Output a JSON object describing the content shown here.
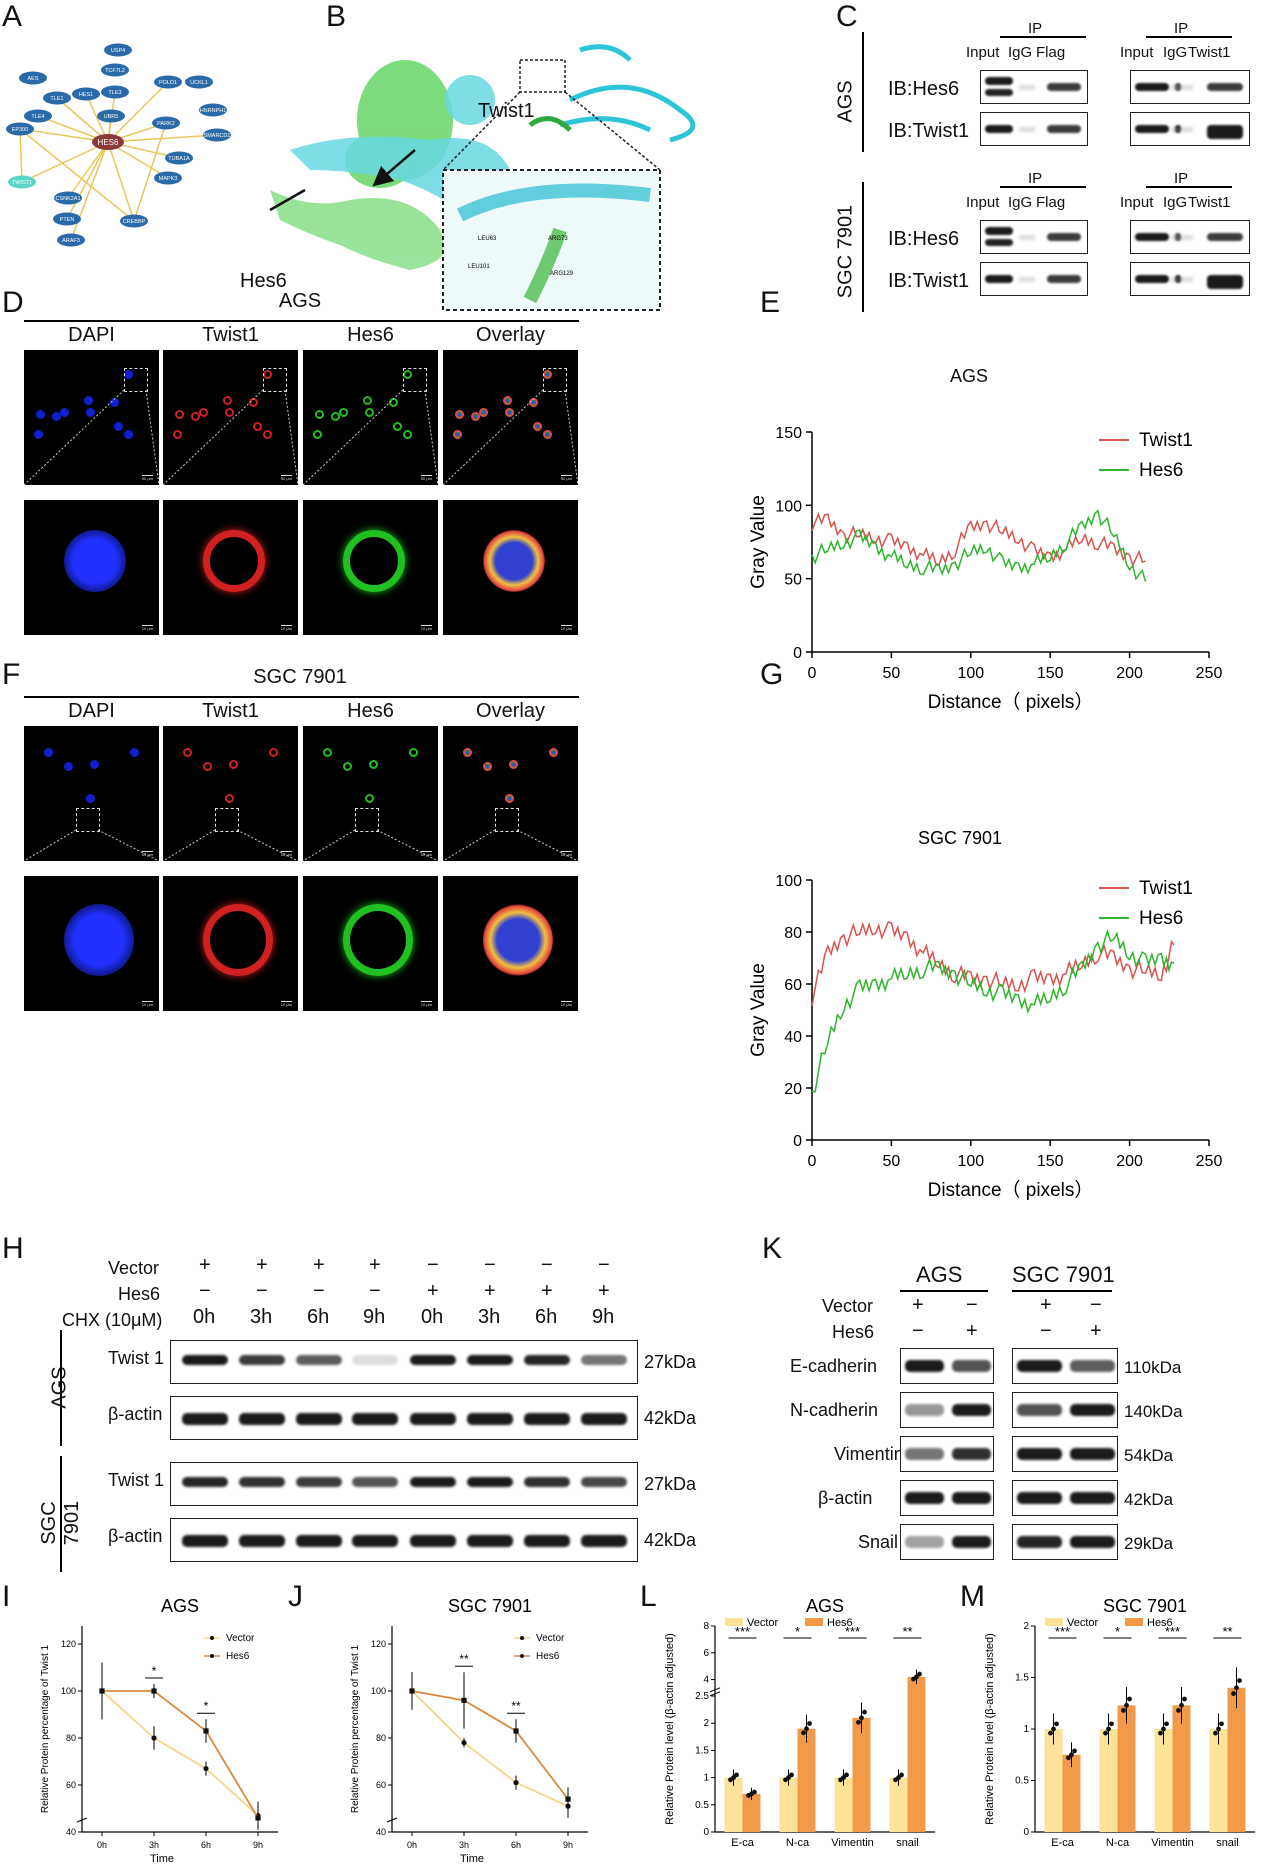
{
  "panels": {
    "A": "A",
    "B": "B",
    "C": "C",
    "D": "D",
    "E": "E",
    "F": "F",
    "G": "G",
    "H": "H",
    "I": "I",
    "J": "J",
    "K": "K",
    "L": "L",
    "M": "M"
  },
  "panelA": {
    "center": "HES6",
    "highlight": "TWIST1",
    "nodes": [
      "USP4",
      "TCF7L2",
      "AES",
      "TLE1",
      "HES1",
      "TLE3",
      "POLD1",
      "UCKL1",
      "HNRNPH1",
      "EP300",
      "TLE4",
      "UBR5",
      "PARK2",
      "SMARCD1",
      "TUBA1A",
      "MAPK3",
      "CSNK2A1",
      "PTEN",
      "CREBBP",
      "ARAF3"
    ]
  },
  "panelB": {
    "twist_label": "Twist1",
    "hes_label": "Hes6",
    "residues": [
      "LEU63",
      "ARG73",
      "LEU101",
      "ARG129"
    ]
  },
  "panelC": {
    "ip": "IP",
    "cols_left": [
      "Input",
      "IgG",
      "Flag"
    ],
    "cols_right": [
      "Input",
      "IgG",
      "Twist1"
    ],
    "cells": [
      "AGS",
      "SGC 7901"
    ],
    "rows": [
      "IB:Hes6",
      "IB:Twist1"
    ]
  },
  "panelD": {
    "title": "AGS",
    "cols": [
      "DAPI",
      "Twist1",
      "Hes6",
      "Overlay"
    ],
    "scale_top": "50 μm",
    "scale_bottom": "10 μm"
  },
  "panelF": {
    "title": "SGC 7901",
    "cols": [
      "DAPI",
      "Twist1",
      "Hes6",
      "Overlay"
    ],
    "scale_top": "50 μm",
    "scale_bottom": "10 μm"
  },
  "panelE": {
    "title": "AGS",
    "ylabel": "Gray Value",
    "xlabel": "Distance（ pixels）",
    "legend": [
      "Twist1",
      "Hes6"
    ]
  },
  "panelG": {
    "title": "SGC 7901",
    "ylabel": "Gray Value",
    "xlabel": "Distance（ pixels）",
    "legend": [
      "Twist1",
      "Hes6"
    ]
  },
  "panelH": {
    "row_labels": [
      "Vector",
      "Hes6",
      "CHX (10μM)"
    ],
    "vector": [
      "+",
      "+",
      "+",
      "+",
      "−",
      "−",
      "−",
      "−"
    ],
    "hes6": [
      "−",
      "−",
      "−",
      "−",
      "+",
      "+",
      "+",
      "+"
    ],
    "times": [
      "0h",
      "3h",
      "6h",
      "9h",
      "0h",
      "3h",
      "6h",
      "9h"
    ],
    "cells": [
      "AGS",
      "SGC 7901"
    ],
    "blots": [
      "Twist 1",
      "β-actin"
    ],
    "kda": [
      "27kDa",
      "42kDa",
      "27kDa",
      "42kDa"
    ]
  },
  "panelK": {
    "cells": [
      "AGS",
      "SGC 7901"
    ],
    "row_labels": [
      "Vector",
      "Hes6"
    ],
    "vector": [
      "+",
      "−",
      "+",
      "−"
    ],
    "hes6": [
      "−",
      "+",
      "−",
      "+"
    ],
    "proteins": [
      "E-cadherin",
      "N-cadherin",
      "Vimentin",
      "β-actin",
      "Snail"
    ],
    "kda": [
      "110kDa",
      "140kDa",
      "54kDa",
      "42kDa",
      "29kDa"
    ]
  },
  "colors": {
    "twist": "#d9534f",
    "hes": "#2db52d",
    "vector_bar": "#fde29a",
    "hes_bar": "#f29a4a",
    "vector_line": "#f7d48a",
    "hes_line": "#d98a40"
  },
  "chart_data": [
    {
      "type": "line",
      "panel": "E",
      "title": "AGS",
      "xlabel": "Distance（ pixels）",
      "ylabel": "Gray Value",
      "xlim": [
        0,
        250
      ],
      "ylim": [
        0,
        150
      ],
      "xticks": [
        0,
        50,
        100,
        150,
        200,
        250
      ],
      "yticks": [
        0,
        50,
        100,
        150
      ],
      "series": [
        {
          "name": "Twist1",
          "x": [
            0,
            10,
            20,
            30,
            40,
            50,
            60,
            70,
            80,
            90,
            100,
            110,
            120,
            130,
            140,
            150,
            160,
            170,
            180,
            190,
            200,
            210
          ],
          "y": [
            88,
            90,
            80,
            80,
            78,
            75,
            72,
            66,
            62,
            70,
            85,
            88,
            82,
            78,
            68,
            65,
            70,
            78,
            75,
            70,
            65,
            62
          ]
        },
        {
          "name": "Hes6",
          "x": [
            0,
            10,
            20,
            30,
            40,
            50,
            60,
            70,
            80,
            90,
            100,
            110,
            120,
            130,
            140,
            150,
            160,
            170,
            180,
            190,
            200,
            210
          ],
          "y": [
            65,
            70,
            75,
            78,
            72,
            65,
            60,
            58,
            55,
            60,
            68,
            72,
            60,
            58,
            60,
            65,
            75,
            85,
            95,
            80,
            60,
            48
          ]
        }
      ]
    },
    {
      "type": "line",
      "panel": "G",
      "title": "SGC 7901",
      "xlabel": "Distance（ pixels）",
      "ylabel": "Gray Value",
      "xlim": [
        0,
        250
      ],
      "ylim": [
        0,
        100
      ],
      "xticks": [
        0,
        50,
        100,
        150,
        200,
        250
      ],
      "yticks": [
        0,
        20,
        40,
        60,
        80,
        100
      ],
      "series": [
        {
          "name": "Twist1",
          "x": [
            0,
            10,
            20,
            30,
            40,
            50,
            60,
            70,
            80,
            90,
            100,
            110,
            120,
            130,
            140,
            150,
            160,
            170,
            180,
            190,
            200,
            210,
            220,
            228
          ],
          "y": [
            55,
            72,
            78,
            80,
            82,
            80,
            78,
            72,
            68,
            64,
            62,
            62,
            60,
            60,
            62,
            62,
            64,
            68,
            72,
            70,
            66,
            65,
            64,
            75
          ]
        },
        {
          "name": "Hes6",
          "x": [
            0,
            10,
            20,
            30,
            40,
            50,
            60,
            70,
            80,
            90,
            100,
            110,
            120,
            130,
            140,
            150,
            160,
            170,
            180,
            190,
            200,
            210,
            220,
            228
          ],
          "y": [
            18,
            38,
            52,
            58,
            60,
            62,
            64,
            66,
            66,
            64,
            60,
            58,
            56,
            54,
            52,
            55,
            60,
            66,
            75,
            78,
            72,
            68,
            70,
            68
          ]
        }
      ]
    },
    {
      "type": "line",
      "panel": "I",
      "title": "AGS",
      "xlabel": "Time",
      "ylabel": "Relative Protein percentage of Twist 1",
      "categories": [
        "0h",
        "3h",
        "6h",
        "9h"
      ],
      "ylim": [
        40,
        120
      ],
      "yticks": [
        40,
        60,
        80,
        100,
        120
      ],
      "series": [
        {
          "name": "Vector",
          "values": [
            100,
            80,
            67,
            47
          ],
          "err": [
            12,
            5,
            3,
            6
          ]
        },
        {
          "name": "Hes6",
          "values": [
            100,
            100,
            83,
            46
          ],
          "err": [
            12,
            3,
            5,
            5
          ]
        }
      ],
      "significance": [
        "*",
        "*"
      ]
    },
    {
      "type": "line",
      "panel": "J",
      "title": "SGC 7901",
      "xlabel": "Time",
      "ylabel": "Relative Protein percentage of Twist 1",
      "categories": [
        "0h",
        "3h",
        "6h",
        "9h"
      ],
      "ylim": [
        40,
        120
      ],
      "yticks": [
        40,
        60,
        80,
        100,
        120
      ],
      "series": [
        {
          "name": "Vector",
          "values": [
            100,
            78,
            61,
            51
          ],
          "err": [
            8,
            2,
            3,
            5
          ]
        },
        {
          "name": "Hes6",
          "values": [
            100,
            96,
            83,
            54
          ],
          "err": [
            8,
            12,
            5,
            5
          ]
        }
      ],
      "significance": [
        "**",
        "**"
      ]
    },
    {
      "type": "bar",
      "panel": "L",
      "title": "AGS",
      "ylabel": "Relative Protein level (β-actin adjusted)",
      "categories": [
        "E-ca",
        "N-ca",
        "Vimentin",
        "snail"
      ],
      "yticks": [
        0,
        0.5,
        1,
        1.5,
        2,
        2.5,
        4,
        6,
        8
      ],
      "series": [
        {
          "name": "Vector",
          "values": [
            1,
            1,
            1,
            1
          ]
        },
        {
          "name": "Hes6",
          "values": [
            0.7,
            1.9,
            2.1,
            4.2
          ]
        }
      ],
      "significance": [
        "***",
        "*",
        "***",
        "**"
      ]
    },
    {
      "type": "bar",
      "panel": "M",
      "title": "SGC 7901",
      "ylabel": "Relative Protein level (β-actin adjusted)",
      "categories": [
        "E-ca",
        "N-ca",
        "Vimentin",
        "snail"
      ],
      "ylim": [
        0,
        2.0
      ],
      "yticks": [
        0.0,
        0.5,
        1.0,
        1.5,
        2.0
      ],
      "series": [
        {
          "name": "Vector",
          "values": [
            1,
            1,
            1,
            1
          ]
        },
        {
          "name": "Hes6",
          "values": [
            0.75,
            1.23,
            1.23,
            1.4
          ]
        }
      ],
      "significance": [
        "***",
        "*",
        "***",
        "**"
      ]
    }
  ]
}
